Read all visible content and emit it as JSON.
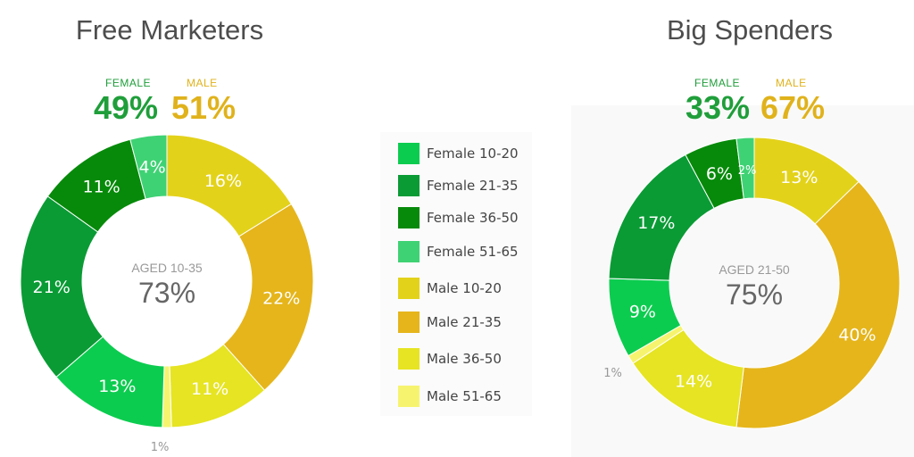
{
  "chart_data": [
    {
      "type": "pie",
      "title": "Free Marketers",
      "female_label": "FEMALE",
      "male_label": "MALE",
      "female_pct": "49%",
      "male_pct": "51%",
      "center_label": "AGED 10-35",
      "center_value": "73%",
      "slices": [
        {
          "category": "Male 10-20",
          "value": 16,
          "label": "16%"
        },
        {
          "category": "Male 21-35",
          "value": 22,
          "label": "22%"
        },
        {
          "category": "Male 36-50",
          "value": 11,
          "label": "11%"
        },
        {
          "category": "Male 51-65",
          "value": 1,
          "label": "1%"
        },
        {
          "category": "Female 10-20",
          "value": 13,
          "label": "13%"
        },
        {
          "category": "Female 21-35",
          "value": 21,
          "label": "21%"
        },
        {
          "category": "Female 36-50",
          "value": 11,
          "label": "11%"
        },
        {
          "category": "Female 51-65",
          "value": 4,
          "label": "4%"
        }
      ]
    },
    {
      "type": "pie",
      "title": "Big Spenders",
      "female_label": "FEMALE",
      "male_label": "MALE",
      "female_pct": "33%",
      "male_pct": "67%",
      "center_label": "AGED 21-50",
      "center_value": "75%",
      "slices": [
        {
          "category": "Male 10-20",
          "value": 13,
          "label": "13%"
        },
        {
          "category": "Male 21-35",
          "value": 40,
          "label": "40%"
        },
        {
          "category": "Male 36-50",
          "value": 14,
          "label": "14%"
        },
        {
          "category": "Male 51-65",
          "value": 1,
          "label": "1%"
        },
        {
          "category": "Female 10-20",
          "value": 9,
          "label": "9%"
        },
        {
          "category": "Female 21-35",
          "value": 17,
          "label": "17%"
        },
        {
          "category": "Female 36-50",
          "value": 6,
          "label": "6%"
        },
        {
          "category": "Female 51-65",
          "value": 2,
          "label": "2%"
        }
      ]
    }
  ],
  "legend": [
    {
      "label": "Female 10-20",
      "color": "#0ccc4f"
    },
    {
      "label": "Female 21-35",
      "color": "#0a9b35"
    },
    {
      "label": "Female 36-50",
      "color": "#078a0a"
    },
    {
      "label": "Female 51-65",
      "color": "#3fd274"
    },
    {
      "label": "Male 10-20",
      "color": "#e3d21a"
    },
    {
      "label": "Male 21-35",
      "color": "#e5b51b"
    },
    {
      "label": "Male 36-50",
      "color": "#e6e423"
    },
    {
      "label": "Male 51-65",
      "color": "#f6f46f"
    }
  ],
  "colors": {
    "female_text": "#1f9e3a",
    "male_text": "#e0b21b",
    "center_label": "#999999",
    "center_value": "#666666",
    "outside_label": "#999999"
  }
}
